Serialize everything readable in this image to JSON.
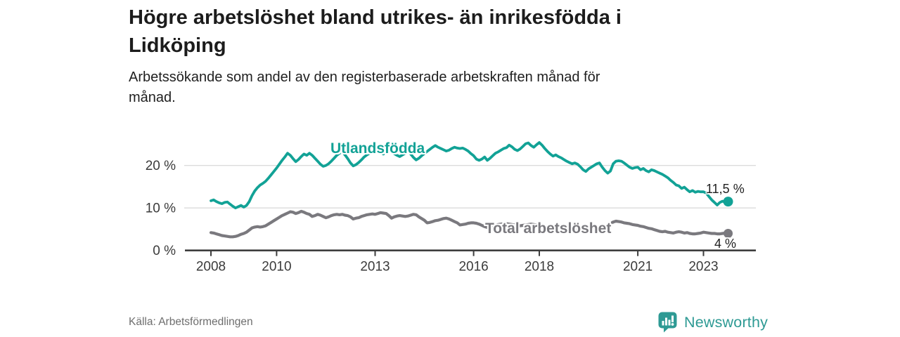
{
  "header": {
    "title_lines": [
      "Högre arbetslöshet bland utrikes- än inrikesfödda i",
      "Lidköping"
    ],
    "subtitle_lines": [
      "Arbetssökande som andel av den registerbaserade arbetskraften månad för",
      "månad."
    ]
  },
  "footer": {
    "source": "Källa: Arbetsförmedlingen",
    "brand": "Newsworthy"
  },
  "colors": {
    "teal": "#12A296",
    "gray": "#7A797E",
    "grid": "#DBDBDB",
    "axis": "#3D3D3D",
    "tick_text": "#3B3B3B",
    "annotation_text": "#1F1F1F",
    "logo_teal": "#2E9A94"
  },
  "chart_data": {
    "type": "line",
    "title": "Högre arbetslöshet bland utrikes- än inrikesfödda i Lidköping",
    "subtitle": "Arbetssökande som andel av den registerbaserade arbetskraften månad för månad.",
    "x_unit": "monthly",
    "x_start_year": 2008,
    "x_end": "2023-10",
    "xticks": [
      2008,
      2010,
      2013,
      2016,
      2018,
      2021,
      2023
    ],
    "yticks": [
      {
        "value": 0,
        "label": "0 %"
      },
      {
        "value": 10,
        "label": "10 %"
      },
      {
        "value": 20,
        "label": "20 %"
      }
    ],
    "ylim": [
      0,
      27
    ],
    "grid": "horizontal-only",
    "legend_position": "inline-labels",
    "series": [
      {
        "name": "Utlandsfödda",
        "color": "#12A296",
        "end_label": "11,5 %",
        "end_value": 11.5,
        "values": [
          11.7,
          11.9,
          11.5,
          11.2,
          11.0,
          11.3,
          11.4,
          10.9,
          10.4,
          10.0,
          10.3,
          10.6,
          10.2,
          10.6,
          11.5,
          12.9,
          14.0,
          14.8,
          15.4,
          15.8,
          16.3,
          17.0,
          17.8,
          18.6,
          19.4,
          20.3,
          21.2,
          22.0,
          22.9,
          22.4,
          21.6,
          20.9,
          21.4,
          22.1,
          22.7,
          22.4,
          22.9,
          22.4,
          21.7,
          21.0,
          20.3,
          19.8,
          20.0,
          20.4,
          21.0,
          21.7,
          22.4,
          22.9,
          23.2,
          22.5,
          21.6,
          20.6,
          19.9,
          20.2,
          20.7,
          21.3,
          22.0,
          22.5,
          22.9,
          23.1,
          23.4,
          23.7,
          23.2,
          22.7,
          23.1,
          23.7,
          23.3,
          22.8,
          22.4,
          22.1,
          22.5,
          22.9,
          23.3,
          22.7,
          21.9,
          21.3,
          21.7,
          22.3,
          22.8,
          23.3,
          23.8,
          24.3,
          24.7,
          24.3,
          24.0,
          23.7,
          23.4,
          23.6,
          24.0,
          24.3,
          24.1,
          24.0,
          24.1,
          23.8,
          23.4,
          22.8,
          22.3,
          21.5,
          21.2,
          21.5,
          22.0,
          21.2,
          21.7,
          22.3,
          22.9,
          23.2,
          23.6,
          24.0,
          24.2,
          24.8,
          24.4,
          23.8,
          23.5,
          23.9,
          24.5,
          25.1,
          25.3,
          24.7,
          24.3,
          24.9,
          25.4,
          24.8,
          24.0,
          23.3,
          22.7,
          22.2,
          22.5,
          22.1,
          21.8,
          21.4,
          21.0,
          20.7,
          20.4,
          20.6,
          20.3,
          19.7,
          19.0,
          18.6,
          19.2,
          19.6,
          20.0,
          20.4,
          20.6,
          19.6,
          18.8,
          18.2,
          18.7,
          20.4,
          21.0,
          21.1,
          21.0,
          20.6,
          20.1,
          19.6,
          19.3,
          19.5,
          19.6,
          19.0,
          19.3,
          18.8,
          18.5,
          19.0,
          18.8,
          18.5,
          18.2,
          17.9,
          17.5,
          17.1,
          16.5,
          16.0,
          15.4,
          15.2,
          14.6,
          14.9,
          14.3,
          13.8,
          14.1,
          13.7,
          13.9,
          13.8,
          13.8,
          13.5,
          12.7,
          11.9,
          11.3,
          10.7,
          11.3,
          11.6,
          11.3,
          11.5
        ]
      },
      {
        "name": "Total arbetslöshet",
        "color": "#7A797E",
        "end_label": "4 %",
        "end_value": 4.0,
        "values": [
          4.2,
          4.1,
          3.9,
          3.7,
          3.5,
          3.4,
          3.3,
          3.2,
          3.2,
          3.3,
          3.5,
          3.8,
          4.0,
          4.3,
          4.8,
          5.3,
          5.5,
          5.6,
          5.5,
          5.6,
          5.8,
          6.2,
          6.6,
          7.0,
          7.4,
          7.8,
          8.2,
          8.5,
          8.8,
          9.1,
          9.0,
          8.7,
          8.9,
          9.2,
          9.0,
          8.7,
          8.5,
          8.0,
          8.2,
          8.5,
          8.3,
          8.0,
          7.7,
          7.9,
          8.2,
          8.4,
          8.5,
          8.4,
          8.5,
          8.3,
          8.2,
          7.9,
          7.4,
          7.6,
          7.7,
          8.0,
          8.2,
          8.4,
          8.5,
          8.6,
          8.5,
          8.7,
          8.9,
          8.8,
          8.7,
          8.2,
          7.6,
          7.9,
          8.1,
          8.2,
          8.1,
          8.0,
          8.1,
          8.3,
          8.5,
          8.4,
          7.9,
          7.5,
          7.1,
          6.5,
          6.6,
          6.8,
          7.0,
          7.1,
          7.3,
          7.5,
          7.6,
          7.4,
          7.1,
          6.8,
          6.5,
          6.0,
          6.1,
          6.2,
          6.4,
          6.5,
          6.5,
          6.4,
          6.2,
          5.9,
          5.6,
          5.4,
          5.5,
          5.7,
          5.9,
          6.1,
          6.2,
          6.3,
          6.3,
          6.2,
          6.1,
          6.0,
          5.9,
          5.8,
          5.9,
          6.0,
          6.1,
          6.2,
          6.1,
          6.0,
          5.9,
          5.8,
          5.7,
          5.6,
          5.5,
          5.4,
          5.3,
          5.4,
          5.5,
          5.6,
          5.5,
          5.4,
          5.3,
          5.2,
          5.2,
          5.1,
          5.0,
          5.1,
          5.2,
          5.3,
          5.4,
          5.5,
          5.5,
          5.6,
          5.8,
          6.0,
          6.3,
          6.7,
          6.9,
          6.8,
          6.7,
          6.5,
          6.4,
          6.3,
          6.1,
          6.0,
          5.9,
          5.7,
          5.6,
          5.4,
          5.2,
          5.1,
          4.9,
          4.7,
          4.5,
          4.4,
          4.5,
          4.3,
          4.2,
          4.1,
          4.3,
          4.4,
          4.3,
          4.1,
          4.2,
          4.0,
          3.9,
          3.9,
          4.0,
          4.1,
          4.3,
          4.2,
          4.1,
          4.0,
          4.0,
          3.9,
          3.9,
          4.0,
          4.1,
          4.0
        ]
      }
    ]
  }
}
